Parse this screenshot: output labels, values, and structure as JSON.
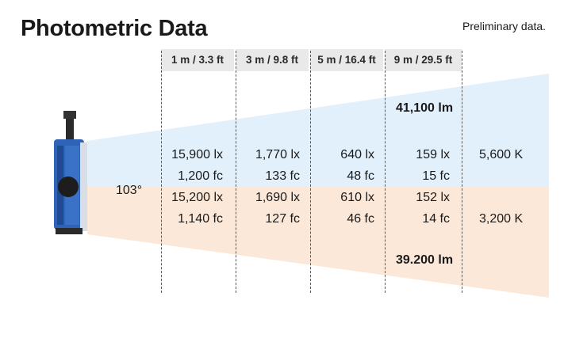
{
  "title": "Photometric Data",
  "note": "Preliminary data.",
  "colors": {
    "daylight_beam": "#e2f0fb",
    "tungsten_beam": "#fbe8d8",
    "header_bg": "#e9e9e9",
    "fixture_blue": "#2f63b8"
  },
  "distances": [
    "1 m / 3.3 ft",
    "3 m / 9.8 ft",
    "5 m / 16.4 ft",
    "9 m / 29.5 ft"
  ],
  "beam_angle": "103°",
  "daylight": {
    "lumens": "41,100 lm",
    "lux": [
      "15,900 lx",
      "1,770 lx",
      "640 lx",
      "159 lx"
    ],
    "fc": [
      "1,200 fc",
      "133 fc",
      "48 fc",
      "15 fc"
    ],
    "cct": "5,600 K"
  },
  "tungsten": {
    "lumens": "39.200 lm",
    "lux": [
      "15,200 lx",
      "1,690 lx",
      "610 lx",
      "152 lx"
    ],
    "fc": [
      "1,140 fc",
      "127 fc",
      "46 fc",
      "14 fc"
    ],
    "cct": "3,200 K"
  }
}
